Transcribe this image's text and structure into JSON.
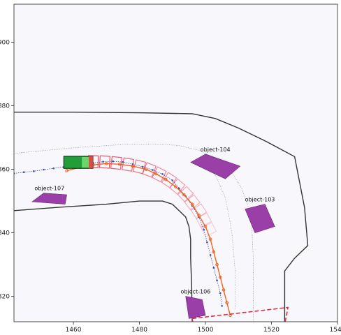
{
  "chart_data": {
    "type": "scatter",
    "title": "",
    "xlabel": "",
    "ylabel": "",
    "xlim": [
      1442,
      1540
    ],
    "ylim": [
      812,
      912
    ],
    "x_ticks": [
      1460,
      1480,
      1500,
      1520,
      1540
    ],
    "y_ticks": [
      820,
      840,
      860,
      880,
      900
    ],
    "x_tick_labels": [
      "1460",
      "1480",
      "1500",
      "1520",
      "1540"
    ],
    "y_tick_labels": [
      "820",
      "840",
      "860",
      "880",
      "900"
    ],
    "grid": false,
    "legend": "none",
    "colors": {
      "background": "#f8f8fc",
      "road_edge": "#333333",
      "reference_path": "#8a8aa8",
      "ego_history": "#3b4ba8",
      "ego_box": "#1f9e3a",
      "ego_light": "#6bd46b",
      "planned_boxes": "#e8405a",
      "planned_traj": "#f06020",
      "objects": "#9a3ea8",
      "target_box": "#e03040"
    },
    "road_boundaries": [
      {
        "name": "outer-boundary",
        "points": [
          [
            1442,
            878
          ],
          [
            1460,
            878
          ],
          [
            1480,
            877.8
          ],
          [
            1496,
            877.5
          ],
          [
            1503,
            876
          ],
          [
            1510,
            873
          ],
          [
            1518,
            869
          ],
          [
            1527,
            864
          ],
          [
            1530,
            848
          ],
          [
            1531,
            836
          ],
          [
            1527,
            832
          ],
          [
            1524,
            828
          ],
          [
            1524,
            820
          ],
          [
            1524,
            812
          ]
        ]
      },
      {
        "name": "inner-boundary",
        "points": [
          [
            1442,
            847
          ],
          [
            1455,
            848
          ],
          [
            1470,
            849
          ],
          [
            1480,
            850
          ],
          [
            1487,
            850
          ],
          [
            1490,
            849
          ],
          [
            1492,
            847
          ],
          [
            1494,
            845
          ],
          [
            1495,
            842
          ],
          [
            1495.5,
            838
          ],
          [
            1495.5,
            832
          ],
          [
            1495.8,
            824
          ],
          [
            1496,
            812
          ]
        ]
      }
    ],
    "reference_path": [
      [
        1442,
        865
      ],
      [
        1460,
        866.8
      ],
      [
        1475,
        867.8
      ],
      [
        1485,
        868
      ],
      [
        1492,
        867.5
      ],
      [
        1498,
        866
      ],
      [
        1504,
        863
      ],
      [
        1508,
        859
      ],
      [
        1511,
        854
      ],
      [
        1513,
        848
      ],
      [
        1514,
        842
      ],
      [
        1514.5,
        832
      ],
      [
        1514.5,
        820
      ],
      [
        1514.5,
        812
      ]
    ],
    "ego_history": [
      [
        1442,
        858.7
      ],
      [
        1445,
        859.1
      ],
      [
        1448,
        859.4
      ],
      [
        1451,
        859.9
      ],
      [
        1454,
        860.3
      ],
      [
        1457,
        860.7
      ],
      [
        1460,
        861.1
      ],
      [
        1463,
        861.6
      ],
      [
        1466,
        862
      ],
      [
        1469,
        862.4
      ],
      [
        1472,
        862.5
      ],
      [
        1475,
        862.3
      ],
      [
        1478,
        861.6
      ],
      [
        1481,
        860.8
      ],
      [
        1484,
        859.8
      ],
      [
        1487,
        858.5
      ],
      [
        1490,
        856.5
      ],
      [
        1492,
        854
      ],
      [
        1494,
        851.5
      ],
      [
        1496,
        848.5
      ],
      [
        1498,
        845
      ],
      [
        1499.5,
        841
      ],
      [
        1500.5,
        837
      ],
      [
        1501.5,
        833
      ],
      [
        1502.5,
        829
      ],
      [
        1503.5,
        825
      ],
      [
        1504.5,
        821
      ],
      [
        1505,
        817
      ]
    ],
    "other_track": [
      [
        1500,
        864
      ],
      [
        1502,
        860
      ],
      [
        1504,
        856
      ],
      [
        1506,
        851
      ],
      [
        1507,
        846
      ],
      [
        1508,
        840
      ],
      [
        1508.5,
        834
      ],
      [
        1509,
        828
      ],
      [
        1509,
        822
      ],
      [
        1509,
        816
      ]
    ],
    "ego_box": {
      "center": [
        1461.5,
        862.2
      ],
      "length": 8.8,
      "width": 3.8
    },
    "planned_boxes": [
      [
        1466,
        862.4
      ],
      [
        1469.5,
        862.3
      ],
      [
        1473,
        862
      ],
      [
        1476.5,
        861.5
      ],
      [
        1480,
        860.8
      ],
      [
        1483,
        859.8
      ],
      [
        1486,
        858.4
      ],
      [
        1489,
        856.6
      ],
      [
        1491.5,
        854.6
      ],
      [
        1494,
        852.2
      ],
      [
        1496,
        849.6
      ],
      [
        1498,
        846.8
      ],
      [
        1499.5,
        844
      ],
      [
        1501,
        841
      ]
    ],
    "planned_trajectory": [
      [
        1458,
        859.6
      ],
      [
        1462,
        860.6
      ],
      [
        1466,
        861.4
      ],
      [
        1470,
        861.8
      ],
      [
        1474,
        861.6
      ],
      [
        1478,
        861
      ],
      [
        1482,
        860
      ],
      [
        1485,
        858.6
      ],
      [
        1488,
        856.8
      ],
      [
        1491,
        854.5
      ],
      [
        1493.5,
        852
      ],
      [
        1496,
        849
      ],
      [
        1498,
        845.5
      ],
      [
        1500,
        842
      ],
      [
        1501.5,
        838
      ],
      [
        1502.5,
        834
      ],
      [
        1503.5,
        830
      ],
      [
        1504.5,
        826
      ],
      [
        1505.5,
        822
      ],
      [
        1506.5,
        818
      ],
      [
        1507.5,
        814
      ]
    ],
    "target_box": [
      [
        1496,
        813
      ],
      [
        1525,
        816.5
      ],
      [
        1524,
        811
      ],
      [
        1497,
        808
      ]
    ],
    "objects": [
      {
        "label": "object-104",
        "polygon": [
          [
            1495.5,
            862.2
          ],
          [
            1500,
            864.8
          ],
          [
            1510.5,
            861
          ],
          [
            1506,
            857
          ]
        ]
      },
      {
        "label": "object-107",
        "polygon": [
          [
            1451,
            852.5
          ],
          [
            1458,
            852
          ],
          [
            1457.5,
            849
          ],
          [
            1447.5,
            849.8
          ]
        ]
      },
      {
        "label": "object-103",
        "polygon": [
          [
            1512,
            847.5
          ],
          [
            1518,
            849
          ],
          [
            1521,
            842
          ],
          [
            1515,
            840
          ]
        ]
      },
      {
        "label": "object-106",
        "polygon": [
          [
            1494,
            820
          ],
          [
            1499,
            819
          ],
          [
            1500,
            814
          ],
          [
            1495,
            813
          ]
        ]
      }
    ]
  }
}
